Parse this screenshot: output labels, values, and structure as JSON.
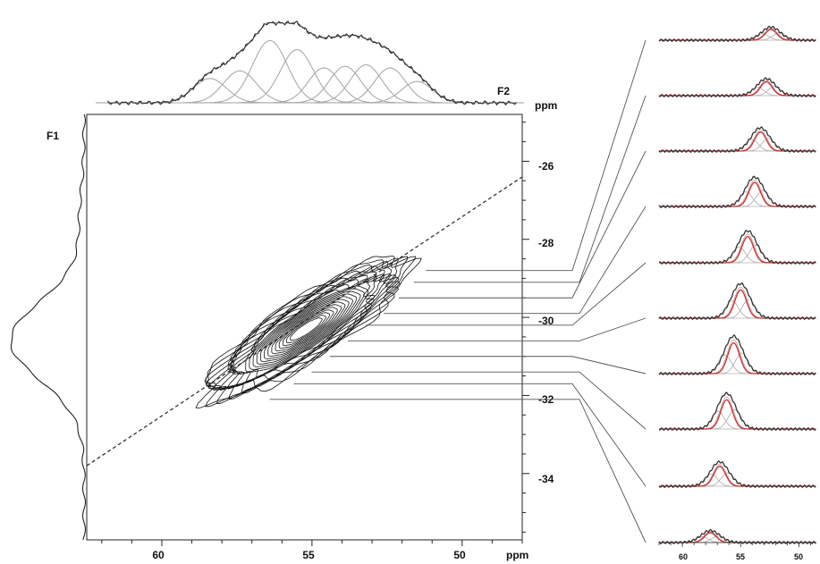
{
  "chart_data": {
    "type": "2D NMR contour spectrum with projections and slices",
    "f2_label": "F2",
    "f1_label": "F1",
    "x_axis_unit": "ppm",
    "y_axis_unit": "ppm",
    "x_ticks": [
      "60",
      "55",
      "50"
    ],
    "y_ticks": [
      "-26",
      "-28",
      "-30",
      "-32",
      "-34"
    ],
    "slice_axis_ticks": [
      "60",
      "55",
      "50"
    ],
    "xlim": [
      62.5,
      48.0
    ],
    "ylim": [
      -24.8,
      -35.7
    ],
    "diagonal": {
      "x": [
        62.5,
        48.0
      ],
      "y": [
        -33.8,
        -26.4
      ]
    },
    "contour_center": {
      "x": 55.2,
      "y": -30.3
    },
    "contour_levels": 24,
    "f2_components": [
      {
        "center": 58.4,
        "height": 0.32,
        "width": 0.55
      },
      {
        "center": 57.4,
        "height": 0.42,
        "width": 0.55
      },
      {
        "center": 56.4,
        "height": 0.82,
        "width": 0.58
      },
      {
        "center": 55.5,
        "height": 0.7,
        "width": 0.55
      },
      {
        "center": 54.6,
        "height": 0.46,
        "width": 0.52
      },
      {
        "center": 53.9,
        "height": 0.48,
        "width": 0.52
      },
      {
        "center": 53.2,
        "height": 0.5,
        "width": 0.52
      },
      {
        "center": 52.4,
        "height": 0.46,
        "width": 0.52
      },
      {
        "center": 51.5,
        "height": 0.28,
        "width": 0.52
      }
    ],
    "f1_projection_peak": {
      "center": -30.6,
      "height": 1.0,
      "width": 1.0
    },
    "slices": [
      {
        "f1": -28.8,
        "peak": 52.4,
        "height": 0.35
      },
      {
        "f1": -29.1,
        "peak": 52.8,
        "height": 0.45
      },
      {
        "f1": -29.5,
        "peak": 53.3,
        "height": 0.62
      },
      {
        "f1": -29.9,
        "peak": 53.8,
        "height": 0.78
      },
      {
        "f1": -30.2,
        "peak": 54.4,
        "height": 0.85
      },
      {
        "f1": -30.6,
        "peak": 55.0,
        "height": 0.92
      },
      {
        "f1": -31.0,
        "peak": 55.6,
        "height": 1.0
      },
      {
        "f1": -31.4,
        "peak": 56.2,
        "height": 0.95
      },
      {
        "f1": -31.7,
        "peak": 56.8,
        "height": 0.65
      },
      {
        "f1": -32.1,
        "peak": 57.6,
        "height": 0.32
      }
    ],
    "colors": {
      "fit": "#d62728",
      "data": "#333333",
      "components": "#aaaaaa"
    }
  }
}
